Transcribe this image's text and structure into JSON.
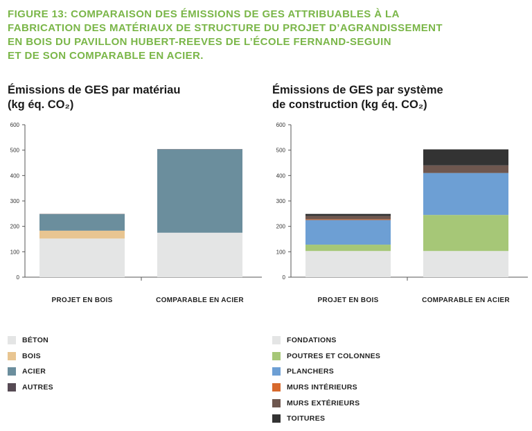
{
  "figure_title": [
    "FIGURE 13: COMPARAISON DES ÉMISSIONS DE GES ATTRIBUABLES À LA",
    "FABRICATION DES MATÉRIAUX DE STRUCTURE DU PROJET D’AGRANDISSEMENT",
    "EN BOIS DU PAVILLON HUBERT-REEVES DE L’ÉCOLE FERNAND-SEGUIN",
    "ET DE SON COMPARABLE EN ACIER."
  ],
  "chart_data": [
    {
      "type": "bar",
      "stacked": true,
      "title": [
        "Émissions de GES par matériau",
        "(kg éq. CO₂)"
      ],
      "categories": [
        "PROJET EN BOIS",
        "COMPARABLE EN ACIER"
      ],
      "ylim": [
        0,
        600
      ],
      "yticks": [
        0,
        100,
        200,
        300,
        400,
        500,
        600
      ],
      "series": [
        {
          "name": "BÉTON",
          "color": "#e4e5e5",
          "values": [
            152,
            175
          ]
        },
        {
          "name": "BOIS",
          "color": "#e8c591",
          "values": [
            31,
            0
          ]
        },
        {
          "name": "ACIER",
          "color": "#6b8e9d",
          "values": [
            65,
            328
          ]
        },
        {
          "name": "AUTRES",
          "color": "#564a54",
          "values": [
            1,
            1
          ]
        }
      ]
    },
    {
      "type": "bar",
      "stacked": true,
      "title": [
        "Émissions de GES par système",
        "de construction (kg éq. CO₂)"
      ],
      "categories": [
        "PROJET EN BOIS",
        "COMPARABLE EN ACIER"
      ],
      "ylim": [
        0,
        600
      ],
      "yticks": [
        0,
        100,
        200,
        300,
        400,
        500,
        600
      ],
      "series": [
        {
          "name": "FONDATIONS",
          "color": "#e4e5e5",
          "values": [
            103,
            103
          ]
        },
        {
          "name": "POUTRES ET COLONNES",
          "color": "#a6c777",
          "values": [
            25,
            142
          ]
        },
        {
          "name": "PLANCHERS",
          "color": "#6d9fd4",
          "values": [
            97,
            165
          ]
        },
        {
          "name": "MURS INTÉRIEURS",
          "color": "#d7692d",
          "values": [
            3,
            0
          ]
        },
        {
          "name": "MURS EXTÉRIEURS",
          "color": "#6e574f",
          "values": [
            13,
            30
          ]
        },
        {
          "name": "TOITURES",
          "color": "#333333",
          "values": [
            8,
            63
          ]
        }
      ]
    }
  ]
}
